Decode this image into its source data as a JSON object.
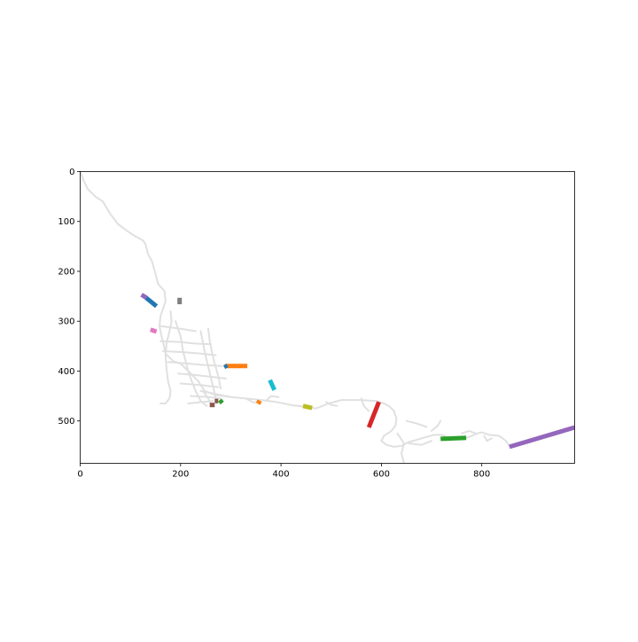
{
  "chart_data": {
    "type": "line",
    "title": "",
    "xlabel": "",
    "ylabel": "",
    "xlim": [
      0,
      985
    ],
    "ylim": [
      585,
      0
    ],
    "y_inverted": true,
    "grid": false,
    "legend": "none",
    "x_ticks": [
      "0",
      "200",
      "400",
      "600",
      "800"
    ],
    "y_ticks": [
      "0",
      "100",
      "200",
      "300",
      "400",
      "500"
    ],
    "x_tick_values": [
      0,
      200,
      400,
      600,
      800
    ],
    "y_tick_values": [
      0,
      100,
      200,
      300,
      400,
      500
    ],
    "network_color": "#e0e0e0",
    "network": [
      [
        [
          0,
          0
        ],
        [
          8,
          20
        ],
        [
          15,
          35
        ],
        [
          30,
          50
        ],
        [
          45,
          60
        ],
        [
          60,
          85
        ],
        [
          75,
          105
        ],
        [
          95,
          120
        ],
        [
          110,
          130
        ],
        [
          125,
          138
        ],
        [
          130,
          145
        ],
        [
          135,
          165
        ],
        [
          143,
          180
        ],
        [
          150,
          205
        ],
        [
          155,
          225
        ],
        [
          168,
          240
        ],
        [
          170,
          260
        ],
        [
          165,
          275
        ],
        [
          160,
          290
        ],
        [
          158,
          310
        ],
        [
          162,
          330
        ],
        [
          166,
          345
        ],
        [
          170,
          365
        ],
        [
          185,
          380
        ],
        [
          200,
          385
        ],
        [
          210,
          395
        ]
      ],
      [
        [
          210,
          395
        ],
        [
          225,
          410
        ],
        [
          235,
          420
        ],
        [
          248,
          440
        ],
        [
          270,
          448
        ],
        [
          300,
          452
        ],
        [
          330,
          455
        ],
        [
          360,
          458
        ],
        [
          390,
          462
        ],
        [
          420,
          468
        ],
        [
          450,
          472
        ],
        [
          470,
          475
        ],
        [
          495,
          465
        ],
        [
          520,
          458
        ],
        [
          560,
          458
        ],
        [
          590,
          460
        ],
        [
          605,
          465
        ],
        [
          615,
          470
        ],
        [
          625,
          480
        ],
        [
          630,
          495
        ],
        [
          628,
          510
        ],
        [
          620,
          520
        ],
        [
          605,
          530
        ]
      ],
      [
        [
          605,
          530
        ],
        [
          600,
          540
        ],
        [
          610,
          548
        ],
        [
          625,
          552
        ],
        [
          640,
          550
        ],
        [
          655,
          542
        ],
        [
          670,
          538
        ],
        [
          690,
          532
        ],
        [
          705,
          528
        ],
        [
          720,
          528
        ],
        [
          740,
          535
        ],
        [
          765,
          535
        ],
        [
          780,
          530
        ],
        [
          790,
          525
        ],
        [
          800,
          523
        ],
        [
          815,
          528
        ],
        [
          835,
          530
        ],
        [
          848,
          540
        ],
        [
          855,
          550
        ],
        [
          865,
          552
        ]
      ],
      [
        [
          180,
          280
        ],
        [
          182,
          300
        ],
        [
          178,
          320
        ],
        [
          172,
          345
        ],
        [
          170,
          370
        ],
        [
          172,
          395
        ],
        [
          175,
          420
        ],
        [
          180,
          440
        ],
        [
          178,
          455
        ],
        [
          170,
          465
        ],
        [
          160,
          465
        ]
      ],
      [
        [
          190,
          300
        ],
        [
          200,
          330
        ],
        [
          205,
          360
        ],
        [
          210,
          380
        ],
        [
          215,
          400
        ],
        [
          222,
          420
        ],
        [
          230,
          440
        ],
        [
          240,
          460
        ],
        [
          252,
          470
        ]
      ],
      [
        [
          240,
          320
        ],
        [
          245,
          345
        ],
        [
          250,
          370
        ],
        [
          256,
          395
        ],
        [
          262,
          420
        ],
        [
          268,
          445
        ],
        [
          272,
          465
        ]
      ],
      [
        [
          255,
          315
        ],
        [
          258,
          340
        ],
        [
          262,
          360
        ],
        [
          268,
          385
        ],
        [
          275,
          410
        ],
        [
          280,
          435
        ]
      ],
      [
        [
          160,
          340
        ],
        [
          200,
          342
        ],
        [
          230,
          345
        ],
        [
          260,
          346
        ]
      ],
      [
        [
          165,
          360
        ],
        [
          205,
          362
        ],
        [
          240,
          365
        ],
        [
          270,
          368
        ]
      ],
      [
        [
          175,
          382
        ],
        [
          215,
          385
        ],
        [
          250,
          388
        ],
        [
          282,
          390
        ]
      ],
      [
        [
          195,
          405
        ],
        [
          230,
          408
        ],
        [
          265,
          412
        ],
        [
          290,
          415
        ]
      ],
      [
        [
          200,
          425
        ],
        [
          240,
          428
        ],
        [
          275,
          432
        ]
      ],
      [
        [
          220,
          450
        ],
        [
          255,
          452
        ],
        [
          280,
          455
        ]
      ],
      [
        [
          215,
          465
        ],
        [
          245,
          462
        ],
        [
          265,
          460
        ]
      ],
      [
        [
          240,
          440
        ],
        [
          270,
          446
        ],
        [
          300,
          452
        ]
      ],
      [
        [
          330,
          455
        ],
        [
          345,
          463
        ],
        [
          360,
          462
        ]
      ],
      [
        [
          370,
          460
        ],
        [
          380,
          450
        ],
        [
          395,
          452
        ]
      ],
      [
        [
          490,
          462
        ],
        [
          500,
          468
        ],
        [
          512,
          470
        ]
      ],
      [
        [
          632,
          525
        ],
        [
          645,
          545
        ],
        [
          640,
          565
        ],
        [
          645,
          585
        ]
      ],
      [
        [
          650,
          500
        ],
        [
          670,
          505
        ],
        [
          690,
          512
        ]
      ],
      [
        [
          700,
          520
        ],
        [
          712,
          510
        ],
        [
          718,
          500
        ]
      ],
      [
        [
          655,
          545
        ],
        [
          680,
          548
        ],
        [
          700,
          540
        ]
      ],
      [
        [
          560,
          455
        ],
        [
          565,
          470
        ],
        [
          575,
          480
        ]
      ],
      [
        [
          805,
          530
        ],
        [
          810,
          540
        ],
        [
          820,
          535
        ]
      ],
      [
        [
          760,
          525
        ],
        [
          775,
          520
        ],
        [
          790,
          526
        ]
      ],
      [
        [
          160,
          310
        ],
        [
          200,
          315
        ],
        [
          230,
          320
        ]
      ],
      [
        [
          245,
          440
        ],
        [
          255,
          455
        ],
        [
          262,
          470
        ]
      ]
    ],
    "series": [
      {
        "color": "#1f77b4",
        "width": 5,
        "points": [
          [
            130,
            252
          ],
          [
            152,
            270
          ]
        ]
      },
      {
        "color": "#9467bd",
        "width": 5,
        "points": [
          [
            122,
            247
          ],
          [
            132,
            253
          ]
        ]
      },
      {
        "color": "#7f7f7f",
        "width": 5,
        "points": [
          [
            198,
            253
          ],
          [
            198,
            266
          ]
        ]
      },
      {
        "color": "#e377c2",
        "width": 5,
        "points": [
          [
            140,
            317
          ],
          [
            152,
            321
          ]
        ]
      },
      {
        "color": "#ff7f0e",
        "width": 5,
        "points": [
          [
            290,
            390
          ],
          [
            333,
            390
          ]
        ]
      },
      {
        "color": "#1f77b4",
        "width": 4,
        "points": [
          [
            288,
            387
          ],
          [
            292,
            394
          ]
        ]
      },
      {
        "color": "#17becf",
        "width": 5,
        "points": [
          [
            378,
            418
          ],
          [
            387,
            438
          ]
        ]
      },
      {
        "color": "#2ca02c",
        "width": 5,
        "points": [
          [
            278,
            458
          ],
          [
            283,
            464
          ]
        ]
      },
      {
        "color": "#8c564b",
        "width": 5,
        "points": [
          [
            268,
            460
          ],
          [
            275,
            460
          ]
        ]
      },
      {
        "color": "#8c564b",
        "width": 5,
        "points": [
          [
            258,
            468
          ],
          [
            268,
            468
          ]
        ]
      },
      {
        "color": "#ff7f0e",
        "width": 4,
        "points": [
          [
            352,
            460
          ],
          [
            360,
            465
          ]
        ]
      },
      {
        "color": "#bcbd22",
        "width": 5,
        "points": [
          [
            444,
            470
          ],
          [
            462,
            474
          ]
        ]
      },
      {
        "color": "#d62728",
        "width": 5,
        "points": [
          [
            575,
            513
          ],
          [
            595,
            462
          ]
        ]
      },
      {
        "color": "#2ca02c",
        "width": 5,
        "points": [
          [
            718,
            536
          ],
          [
            769,
            534
          ]
        ]
      },
      {
        "color": "#9467bd",
        "width": 5,
        "points": [
          [
            855,
            552
          ],
          [
            985,
            513
          ]
        ]
      }
    ]
  }
}
